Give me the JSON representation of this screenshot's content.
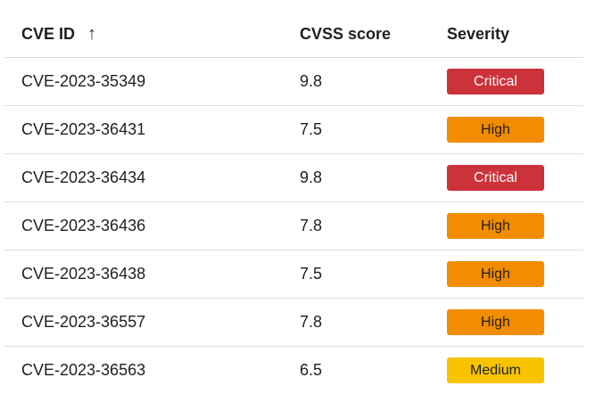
{
  "header": {
    "col_id": "CVE ID",
    "sort_icon": "↑",
    "col_score": "CVSS score",
    "col_severity": "Severity"
  },
  "rows": [
    {
      "id": "CVE-2023-35349",
      "score": "9.8",
      "severity": "Critical",
      "level": "critical"
    },
    {
      "id": "CVE-2023-36431",
      "score": "7.5",
      "severity": "High",
      "level": "high"
    },
    {
      "id": "CVE-2023-36434",
      "score": "9.8",
      "severity": "Critical",
      "level": "critical"
    },
    {
      "id": "CVE-2023-36436",
      "score": "7.8",
      "severity": "High",
      "level": "high"
    },
    {
      "id": "CVE-2023-36438",
      "score": "7.5",
      "severity": "High",
      "level": "high"
    },
    {
      "id": "CVE-2023-36557",
      "score": "7.8",
      "severity": "High",
      "level": "high"
    },
    {
      "id": "CVE-2023-36563",
      "score": "6.5",
      "severity": "Medium",
      "level": "medium"
    }
  ],
  "colors": {
    "critical": "#cc323a",
    "high": "#f28c00",
    "medium": "#f8c400"
  }
}
